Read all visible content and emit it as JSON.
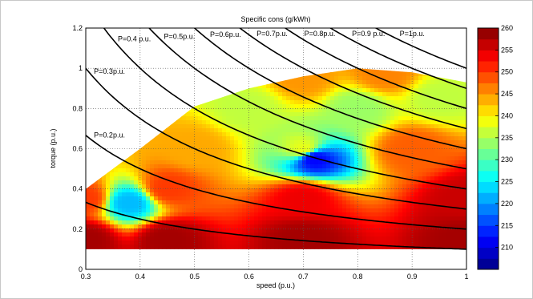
{
  "chart_data": {
    "type": "heatmap",
    "title": "Specific cons (g/kWh)",
    "xlabel": "speed (p.u.)",
    "ylabel": "torque (p.u.)",
    "xlim": [
      0.3,
      1.0
    ],
    "ylim": [
      0,
      1.2
    ],
    "x_ticks": [
      "0.3",
      "0.4",
      "0.5",
      "0.6",
      "0.7",
      "0.8",
      "0.9",
      "1"
    ],
    "y_ticks": [
      "0",
      "0.2",
      "0.4",
      "0.6",
      "0.8",
      "1",
      "1.2"
    ],
    "grid": true,
    "colorbar": {
      "min": 205,
      "max": 260,
      "ticks": [
        "210",
        "215",
        "220",
        "225",
        "230",
        "235",
        "240",
        "245",
        "250",
        "255",
        "260"
      ]
    },
    "power_curves": [
      {
        "label": "P=0.2p.u.",
        "p": 0.2
      },
      {
        "label": "P=0.3p.u.",
        "p": 0.3
      },
      {
        "label": "P=0.4 p.u.",
        "p": 0.4
      },
      {
        "label": "P=0.5p.u.",
        "p": 0.5
      },
      {
        "label": "P=0.6p.u.",
        "p": 0.6
      },
      {
        "label": "P=0.7p.u.",
        "p": 0.7
      },
      {
        "label": "P=0.8p.u.",
        "p": 0.8
      },
      {
        "label": "P=0.9 p.u.",
        "p": 0.9
      },
      {
        "label": "P=1p.u.",
        "p": 1.0
      }
    ],
    "extra_curves": [
      0.1
    ],
    "max_torque_boundary": [
      [
        0.3,
        0.4
      ],
      [
        0.4,
        0.6
      ],
      [
        0.5,
        0.81
      ],
      [
        0.6,
        0.9
      ],
      [
        0.7,
        0.96
      ],
      [
        0.8,
        1.0
      ],
      [
        0.9,
        0.98
      ],
      [
        1.0,
        0.93
      ]
    ],
    "min_torque_boundary": [
      [
        0.3,
        0.1
      ],
      [
        1.0,
        0.1
      ]
    ],
    "field_description_points": [
      [
        0.3,
        0.15,
        258
      ],
      [
        0.45,
        0.15,
        258
      ],
      [
        0.7,
        0.15,
        258
      ],
      [
        1.0,
        0.15,
        258
      ],
      [
        0.3,
        0.35,
        250
      ],
      [
        0.45,
        0.4,
        250
      ],
      [
        0.7,
        0.35,
        254
      ],
      [
        1.0,
        0.35,
        256
      ],
      [
        0.5,
        0.6,
        244
      ],
      [
        0.7,
        0.6,
        238
      ],
      [
        0.9,
        0.6,
        248
      ],
      [
        0.6,
        0.8,
        236
      ],
      [
        0.8,
        0.8,
        234
      ],
      [
        0.95,
        0.85,
        236
      ],
      [
        0.7,
        0.95,
        245
      ],
      [
        0.85,
        0.97,
        246
      ],
      [
        0.72,
        0.55,
        212
      ],
      [
        0.38,
        0.33,
        222
      ]
    ]
  }
}
